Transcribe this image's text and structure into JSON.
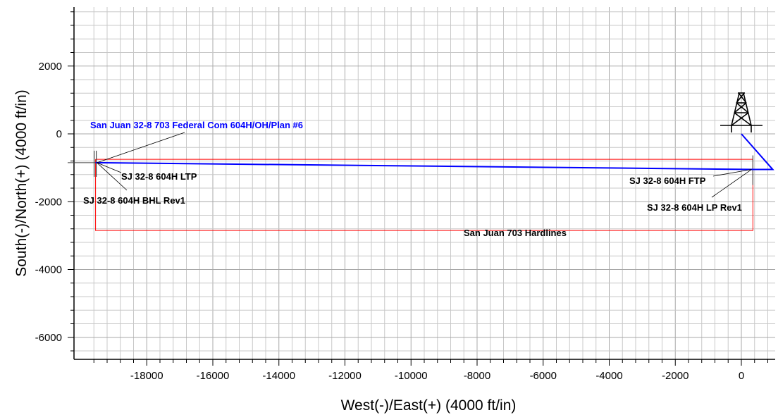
{
  "chart_data": {
    "type": "line",
    "xlabel": "West(-)/East(+) (4000 ft/in)",
    "ylabel": "South(-)/North(+) (4000 ft/in)",
    "xlim": [
      -19800,
      1000
    ],
    "ylim": [
      -6700,
      3800
    ],
    "x_ticks": [
      -18000,
      -16000,
      -14000,
      -12000,
      -10000,
      -8000,
      -6000,
      -4000,
      -2000,
      0
    ],
    "y_ticks": [
      2000,
      0,
      -2000,
      -4000,
      -6000
    ],
    "grid": true,
    "colors": {
      "plan": "#0000ff",
      "hardlines": "#ff0000",
      "grid": "#c8c8c8"
    },
    "series": [
      {
        "name": "San Juan 32-8 703 Federal Com 604H/OH/Plan #6",
        "x": [
          0,
          950,
          400,
          -19550
        ],
        "y": [
          0,
          -1050,
          -1050,
          -850
        ]
      }
    ],
    "hardlines": {
      "label": "San Juan 703 Hardlines",
      "x": [
        -19550,
        350
      ],
      "y": [
        -2850,
        -750
      ]
    },
    "targets": [
      {
        "label": "SJ 32-8 604H LTP",
        "x": -19550,
        "y": -850
      },
      {
        "label": "SJ 32-8 604H BHL Rev1",
        "x": -19550,
        "y": -850
      },
      {
        "label": "SJ 32-8 604H FTP",
        "x": 350,
        "y": -1050
      },
      {
        "label": "SJ 32-8 604H LP Rev1",
        "x": 350,
        "y": -1050
      }
    ],
    "well_icon": "derrick-icon"
  }
}
